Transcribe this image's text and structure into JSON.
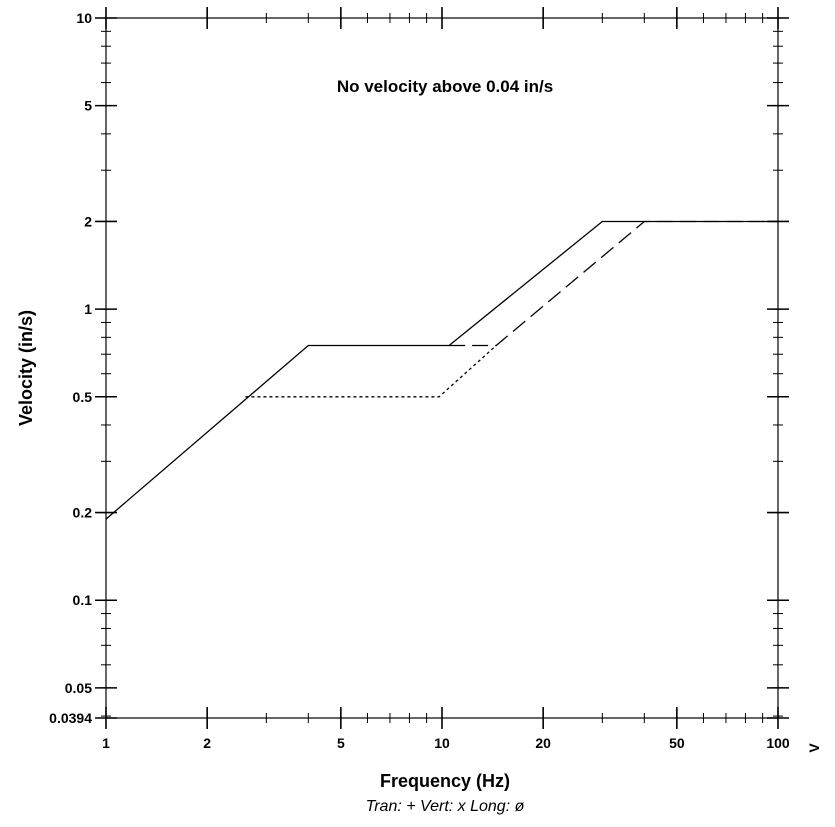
{
  "chart_data": {
    "type": "line",
    "title": "",
    "xlabel": "Frequency (Hz)",
    "ylabel": "Velocity (in/s)",
    "x_scale": "log",
    "y_scale": "log",
    "xlim": [
      1,
      100
    ],
    "ylim": [
      0.0394,
      10
    ],
    "grid": false,
    "x_ticks": [
      {
        "value": 1,
        "label": "1"
      },
      {
        "value": 2,
        "label": "2"
      },
      {
        "value": 5,
        "label": "5"
      },
      {
        "value": 10,
        "label": "10"
      },
      {
        "value": 20,
        "label": "20"
      },
      {
        "value": 50,
        "label": "50"
      },
      {
        "value": 100,
        "label": "100"
      }
    ],
    "y_ticks": [
      {
        "value": 0.0394,
        "label": "0.0394"
      },
      {
        "value": 0.05,
        "label": "0.05"
      },
      {
        "value": 0.1,
        "label": "0.1"
      },
      {
        "value": 0.2,
        "label": "0.2"
      },
      {
        "value": 0.5,
        "label": "0.5"
      },
      {
        "value": 1,
        "label": "1"
      },
      {
        "value": 2,
        "label": "2"
      },
      {
        "value": 5,
        "label": "5"
      },
      {
        "value": 10,
        "label": "10"
      }
    ],
    "annotation": "No velocity above 0.04 in/s",
    "axis_marker": "V",
    "legend_text": "Tran: +  Vert: x  Long: ø",
    "series": [
      {
        "style": "solid",
        "x": [
          1,
          4,
          10.5,
          30,
          100
        ],
        "y": [
          0.19,
          0.75,
          0.75,
          2.0,
          2.0
        ]
      },
      {
        "style": "dashed",
        "x": [
          10.5,
          14.5,
          40,
          100
        ],
        "y": [
          0.75,
          0.75,
          2.0,
          2.0
        ]
      },
      {
        "style": "dotted",
        "x": [
          2.6,
          9.8,
          14.5
        ],
        "y": [
          0.5,
          0.5,
          0.75
        ]
      }
    ],
    "colors": {
      "line": "#000000",
      "background": "#ffffff"
    }
  }
}
